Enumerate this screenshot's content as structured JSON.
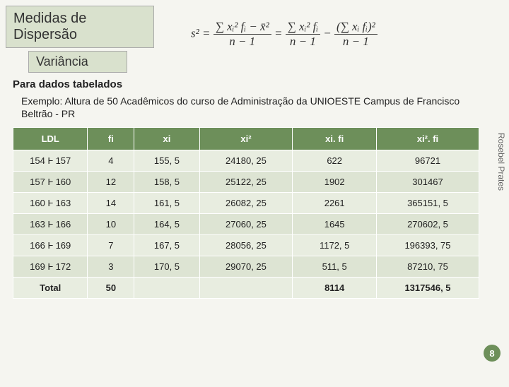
{
  "title": "Medidas de Dispersão",
  "subtitle": "Variância",
  "section_label": "Para dados tabelados",
  "example_text": "Exemplo: Altura de 50 Acadêmicos  do curso de Administração da UNIOESTE Campus de Francisco Beltrão - PR",
  "side_label": "Rosebel Prates",
  "page_number": "8",
  "table": {
    "columns": [
      "LDL",
      "fi",
      "xi",
      "xi²",
      "xi. fi",
      "xi². fi"
    ],
    "rows": [
      [
        "154 Ⱶ 157",
        "4",
        "155, 5",
        "24180, 25",
        "622",
        "96721"
      ],
      [
        "157 Ⱶ 160",
        "12",
        "158, 5",
        "25122, 25",
        "1902",
        "301467"
      ],
      [
        "160 Ⱶ 163",
        "14",
        "161, 5",
        "26082, 25",
        "2261",
        "365151, 5"
      ],
      [
        "163 Ⱶ 166",
        "10",
        "164, 5",
        "27060, 25",
        "1645",
        "270602, 5"
      ],
      [
        "166 Ⱶ 169",
        "7",
        "167, 5",
        "28056, 25",
        "1172, 5",
        "196393, 75"
      ],
      [
        "169 Ⱶ 172",
        "3",
        "170, 5",
        "29070, 25",
        "511, 5",
        "87210, 75"
      ],
      [
        "Total",
        "50",
        "",
        "",
        "8114",
        "1317546, 5"
      ]
    ],
    "col_widths": [
      "16%",
      "10%",
      "14%",
      "20%",
      "18%",
      "22%"
    ],
    "header_bg": "#6d8f5a",
    "header_color": "#ffffff",
    "row_bg_even": "#dde4d3",
    "row_bg_odd": "#e8ede0"
  },
  "formula": {
    "lhs": "s²",
    "term1_num": "∑ xᵢ² fᵢ − x̄²",
    "term1_den": "n − 1",
    "term2_num": "∑ xᵢ² fᵢ",
    "term2_den": "n − 1",
    "term3_num": "(∑ xᵢ fᵢ)²",
    "term3_den": "n − 1"
  }
}
